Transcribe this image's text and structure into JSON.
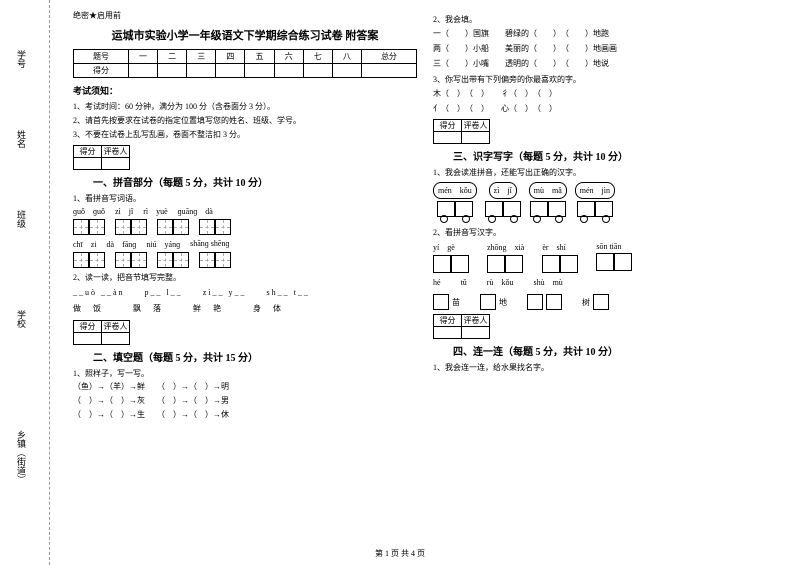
{
  "left_labels": [
    "学号",
    "姓名",
    "班级",
    "学校",
    "乡镇（街道）"
  ],
  "secret": "绝密★启用前",
  "title": "运城市实验小学一年级语文下学期综合练习试卷 附答案",
  "score_headers": [
    "题号",
    "一",
    "二",
    "三",
    "四",
    "五",
    "六",
    "七",
    "八",
    "总分"
  ],
  "score_row2": "得分",
  "notice_title": "考试须知：",
  "notice": [
    "1、考试时间：60 分钟，满分为 100 分（含卷面分 3 分）。",
    "2、请首先按要求在试卷的指定位置填写您的姓名、班级、学号。",
    "3、不要在试卷上乱写乱画，卷面不整洁扣 3 分。"
  ],
  "mini_headers": [
    "得分",
    "评卷人"
  ],
  "section1": "一、拼音部分（每题 5 分，共计 10 分）",
  "q1": "1、看拼音写词语。",
  "pinyin_line1": [
    "ɡuǒ　ɡuǒ",
    "zì　jǐ",
    "rì　yuè",
    "ɡuānɡ　dà"
  ],
  "pinyin_line2": [
    "chī　zi",
    "dà　fānɡ",
    "niú　yánɡ",
    "shānɡ shēnɡ"
  ],
  "q2": "2、读一读，把音节填写完整。",
  "fill_syllables": "__uò __àn　　p__ l__　　zì__ y__　　sh__ t__",
  "fill_chars": "做　饭　　　飘　落　　　鲜　艳　　　身　体",
  "section2": "二、填空题（每题 5 分，共计 15 分）",
  "q2_1": "1、照样子，写一写。",
  "analogy": [
    "（鱼）→（羊）→鲜　　（　）→（　）→明",
    "（　）→（　）→灰　　（　）→（　）→男",
    "（　）→（　）→生　　（　）→（　）→休"
  ],
  "q_r1": "2、我会填。",
  "fill2": [
    "一（　　）国旗　　碧绿的（　　）　（　　）地跑",
    "两（　　）小船　　美丽的（　　）　（　　）地画画",
    "三（　　）小嘴　　透明的（　　）　（　　）地说"
  ],
  "q_r2": "3、你写出带有下列偏旁的你最喜欢的字。",
  "radicals": [
    "木（　）　（　）　　彳（　）　（　）",
    "亻（　）　（　）　　心（　）　（　）"
  ],
  "section3": "三、识字写字（每题 5 分，共计 10 分）",
  "q3_1": "1、我会读准拼音，还能写出正确的汉字。",
  "clouds": [
    "mén　kǒu",
    "zì　jǐ",
    "mù　mǎ",
    "mén　jìn"
  ],
  "q3_2": "2、看拼音写汉字。",
  "py_boxes_r1": [
    "yí　gè",
    "zhōng　xià",
    "èr　shí",
    "sōn tiān"
  ],
  "py_boxes_r2": [
    {
      "py": "hé",
      "char": "苗"
    },
    {
      "py": "tǔ",
      "char": "地"
    },
    {
      "py": "rù　kǒu",
      "char": ""
    },
    {
      "py": "shù　mù",
      "char": "树"
    }
  ],
  "section4": "四、连一连（每题 5 分，共计 10 分）",
  "q4_1": "1、我会连一连，给水果找名字。",
  "footer": "第 1 页 共 4 页"
}
